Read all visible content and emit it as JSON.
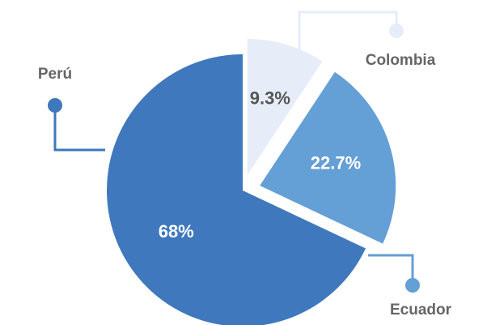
{
  "chart_data": {
    "type": "pie",
    "categories": [
      "Colombia",
      "Ecuador",
      "Perú"
    ],
    "values": [
      9.3,
      22.7,
      68
    ],
    "value_labels": [
      "9.3%",
      "22.7%",
      "68%"
    ],
    "colors": [
      "#e6edf9",
      "#649fd6",
      "#3f78bd"
    ]
  }
}
